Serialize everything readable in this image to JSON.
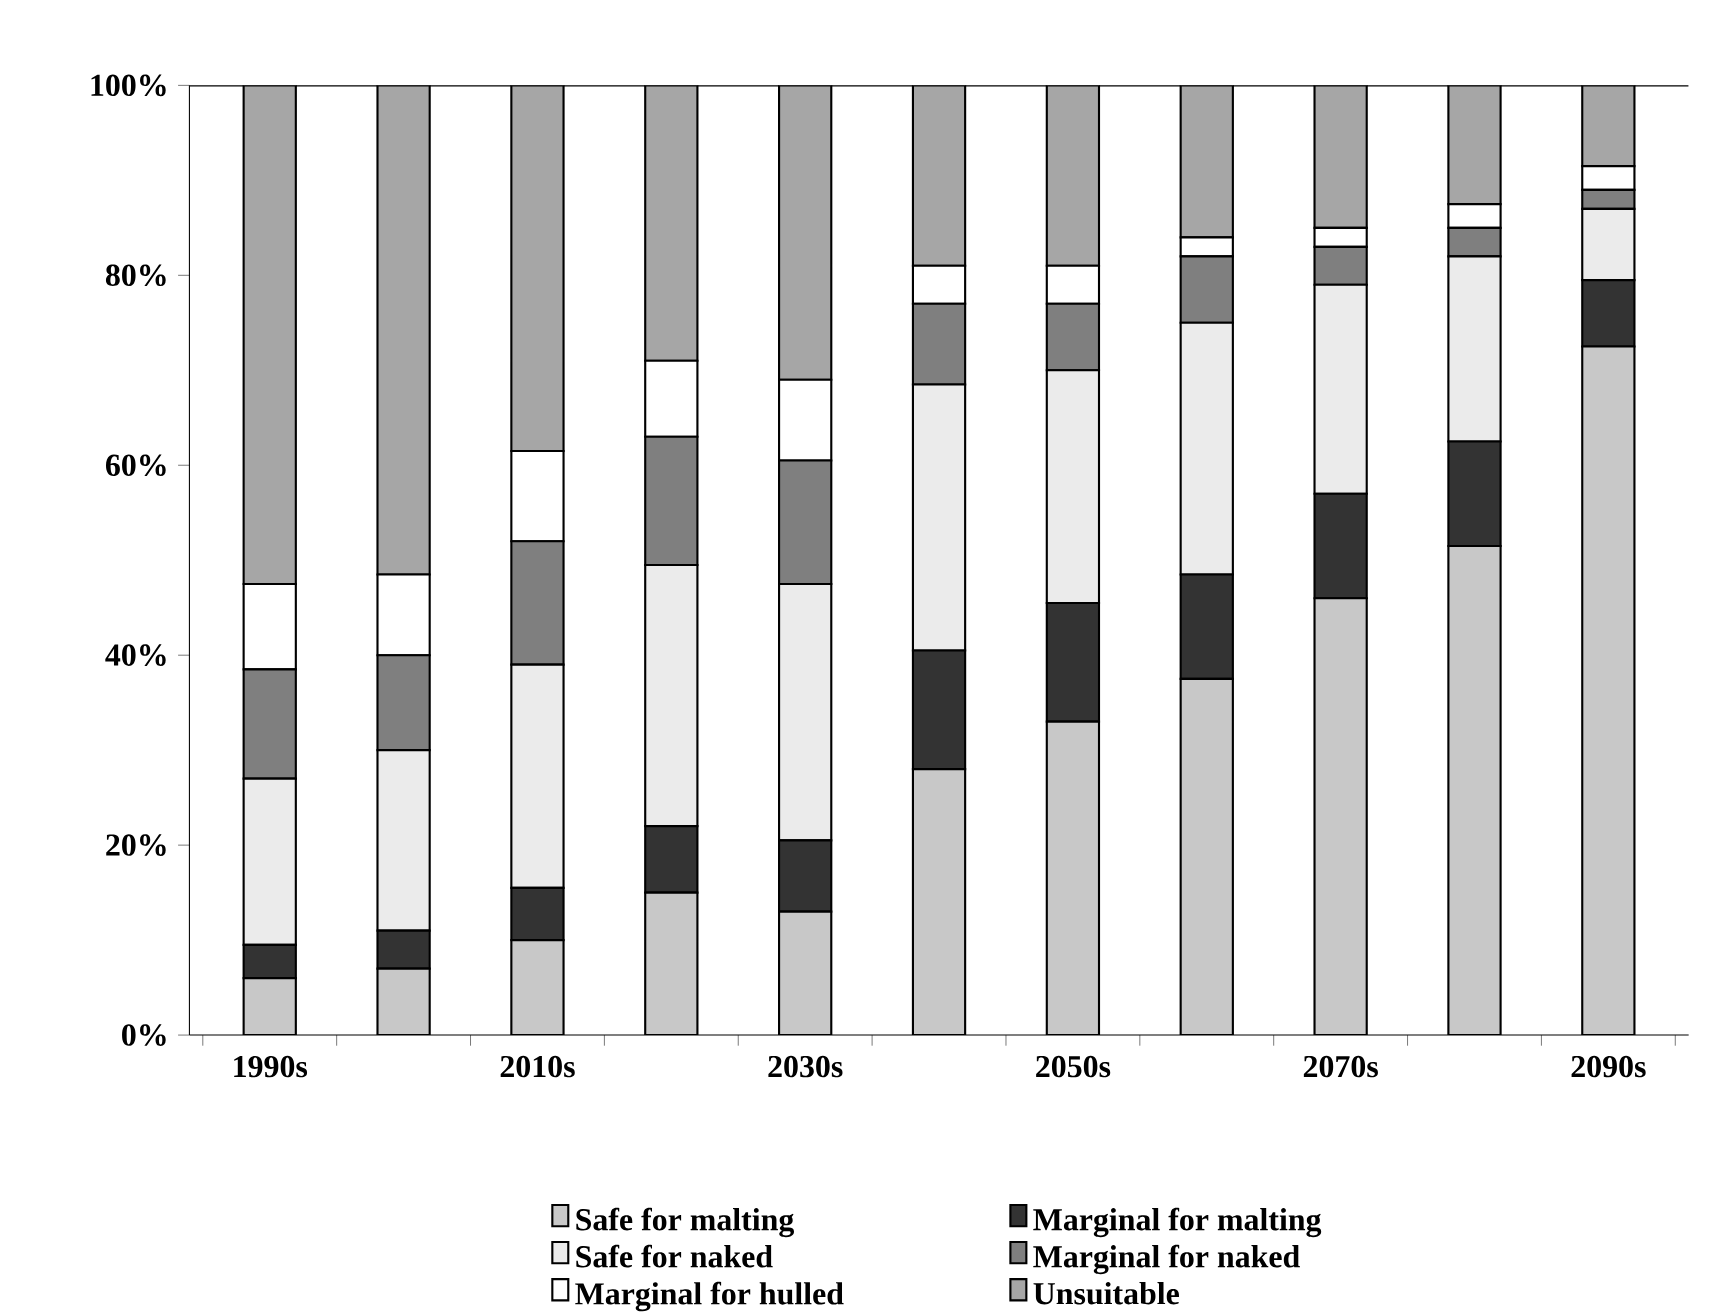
{
  "chart_data": {
    "type": "bar",
    "stacked": true,
    "categories": [
      "1990s",
      null,
      "2010s",
      null,
      "2030s",
      null,
      "2050s",
      null,
      "2070s",
      null,
      "2090s"
    ],
    "series": [
      {
        "name": "Safe for malting",
        "color": "#c8c8c8",
        "values": [
          6,
          7,
          10,
          15,
          13,
          28,
          33,
          37.5,
          46,
          51.5,
          72.5
        ]
      },
      {
        "name": "Marginal for malting",
        "color": "#333333",
        "values": [
          3.5,
          4,
          5.5,
          7,
          7.5,
          12.5,
          12.5,
          11,
          11,
          11,
          7
        ]
      },
      {
        "name": "Safe for naked",
        "color": "#ebebeb",
        "values": [
          17.5,
          19,
          23.5,
          27.5,
          27,
          28,
          24.5,
          26.5,
          22,
          19.5,
          7.5
        ]
      },
      {
        "name": "Marginal for naked",
        "color": "#7f7f7f",
        "values": [
          11.5,
          10,
          13,
          13.5,
          13,
          8.5,
          7,
          7,
          4,
          3,
          2
        ]
      },
      {
        "name": "Marginal for hulled",
        "color": "#ffffff",
        "values": [
          9,
          8.5,
          9.5,
          8,
          8.5,
          4,
          4,
          2,
          2,
          2.5,
          2.5
        ]
      },
      {
        "name": "Unsuitable",
        "color": "#a6a6a6",
        "values": [
          52.5,
          51.5,
          38.5,
          29,
          31,
          19,
          19,
          16,
          15,
          12.5,
          8.5
        ]
      }
    ],
    "ylim": [
      0,
      100
    ],
    "yticks": [
      {
        "value": 0,
        "label": "0%"
      },
      {
        "value": 20,
        "label": "20%"
      },
      {
        "value": 40,
        "label": "40%"
      },
      {
        "value": 60,
        "label": "60%"
      },
      {
        "value": 80,
        "label": "80%"
      },
      {
        "value": 100,
        "label": "100%"
      }
    ],
    "legend": "bottom",
    "grid": false
  }
}
